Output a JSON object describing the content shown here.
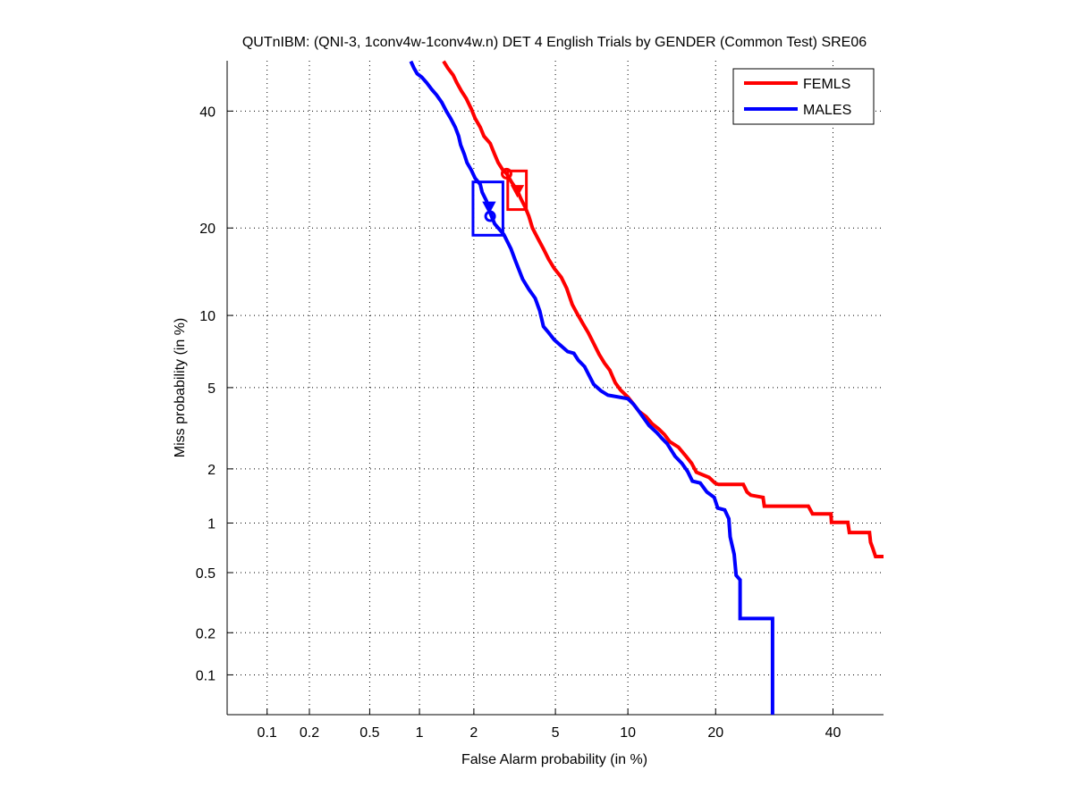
{
  "chart_data": {
    "type": "line",
    "scale": "normal-deviate (DET)",
    "title": "QUTnIBM: (QNI-3, 1conv4w-1conv4w.n) DET 4 English Trials by GENDER (Common Test) SRE06",
    "xlabel": "False Alarm probability (in %)",
    "ylabel": "Miss probability (in %)",
    "xlim": [
      0.05,
      50
    ],
    "ylim": [
      0.05,
      50
    ],
    "grid": true,
    "legend_position": "top-right",
    "x_ticks": [
      {
        "value": 0.1,
        "label": "0.1"
      },
      {
        "value": 0.2,
        "label": "0.2"
      },
      {
        "value": 0.5,
        "label": "0.5"
      },
      {
        "value": 1,
        "label": "1"
      },
      {
        "value": 2,
        "label": "2"
      },
      {
        "value": 5,
        "label": "5"
      },
      {
        "value": 10,
        "label": "10"
      },
      {
        "value": 20,
        "label": "20"
      },
      {
        "value": 40,
        "label": "40"
      }
    ],
    "y_ticks": [
      {
        "value": 0.1,
        "label": "0.1"
      },
      {
        "value": 0.2,
        "label": "0.2"
      },
      {
        "value": 0.5,
        "label": "0.5"
      },
      {
        "value": 1,
        "label": "1"
      },
      {
        "value": 2,
        "label": "2"
      },
      {
        "value": 5,
        "label": "5"
      },
      {
        "value": 10,
        "label": "10"
      },
      {
        "value": 20,
        "label": "20"
      },
      {
        "value": 40,
        "label": "40"
      }
    ],
    "series": [
      {
        "name": "FEMLS",
        "color": "#ff0000",
        "x": [
          1.37,
          1.45,
          1.55,
          1.62,
          1.72,
          1.82,
          1.94,
          2.03,
          2.16,
          2.26,
          2.43,
          2.56,
          2.67,
          2.82,
          2.94,
          3.12,
          3.32,
          3.45,
          3.63,
          3.77,
          3.92,
          4.15,
          4.41,
          4.66,
          4.94,
          5.31,
          5.61,
          5.93,
          6.25,
          6.59,
          6.94,
          7.31,
          7.69,
          8.09,
          8.5,
          8.93,
          9.37,
          10.0,
          10.5,
          11.0,
          11.7,
          12.3,
          13.0,
          13.6,
          14.2,
          15.2,
          16.1,
          16.8,
          17.4,
          19.1,
          19.9,
          20.4,
          24.1,
          24.7,
          25.3,
          27.3,
          27.5,
          35.3,
          36.1,
          39.6,
          39.7,
          42.9,
          43.2,
          47.2,
          47.4,
          47.9,
          48.4,
          50
        ],
        "y": [
          49.9,
          48.5,
          47.1,
          45.6,
          43.9,
          42.5,
          40.4,
          38.6,
          36.9,
          35.2,
          33.9,
          31.9,
          30.4,
          29.1,
          28.5,
          27.0,
          25.7,
          24.4,
          23.0,
          21.7,
          20.0,
          18.6,
          17.2,
          15.9,
          14.8,
          13.8,
          12.6,
          11.0,
          10.1,
          9.29,
          8.56,
          7.74,
          6.99,
          6.41,
          5.97,
          5.26,
          4.88,
          4.53,
          4.2,
          3.89,
          3.66,
          3.39,
          3.19,
          3.0,
          2.76,
          2.59,
          2.33,
          2.14,
          1.92,
          1.8,
          1.68,
          1.65,
          1.65,
          1.5,
          1.44,
          1.4,
          1.25,
          1.25,
          1.13,
          1.13,
          1.01,
          1.01,
          0.88,
          0.88,
          0.77,
          0.7,
          0.63,
          0.63
        ],
        "act_point": {
          "x": 2.94,
          "y": 28.5,
          "marker": "circle"
        },
        "min_dcf_point": {
          "x": 3.32,
          "y": 25.7,
          "marker": "triangle"
        },
        "confidence_box": {
          "x": [
            2.98,
            3.67
          ],
          "y": [
            22.7,
            28.96
          ]
        }
      },
      {
        "name": "MALES",
        "color": "#0000ff",
        "x": [
          0.89,
          0.93,
          0.97,
          1.03,
          1.1,
          1.18,
          1.25,
          1.34,
          1.42,
          1.5,
          1.59,
          1.66,
          1.7,
          1.78,
          1.84,
          1.94,
          2.03,
          2.16,
          2.21,
          2.33,
          2.43,
          2.56,
          2.67,
          2.85,
          3.09,
          3.25,
          3.52,
          3.77,
          4.04,
          4.24,
          4.41,
          4.66,
          4.94,
          5.26,
          5.66,
          6.03,
          6.3,
          6.7,
          7.0,
          7.31,
          7.82,
          8.36,
          10.0,
          10.5,
          11.0,
          11.5,
          12.0,
          12.8,
          13.3,
          13.9,
          14.8,
          15.6,
          16.3,
          16.9,
          17.9,
          18.8,
          19.8,
          20.3,
          21.3,
          21.9,
          22.1,
          22.7,
          23.0,
          23.6,
          23.6,
          28.9,
          28.9
        ],
        "y": [
          49.9,
          48.5,
          47.4,
          46.7,
          45.6,
          44.2,
          43.2,
          41.7,
          40.0,
          38.6,
          36.9,
          35.2,
          33.6,
          31.9,
          30.4,
          29.1,
          27.7,
          26.7,
          25.4,
          24.0,
          22.2,
          20.6,
          20.0,
          19.1,
          17.2,
          15.7,
          13.6,
          12.5,
          11.6,
          10.4,
          9.06,
          8.56,
          8.01,
          7.62,
          7.17,
          7.05,
          6.59,
          6.19,
          5.66,
          5.17,
          4.84,
          4.62,
          4.45,
          4.2,
          3.89,
          3.59,
          3.32,
          3.06,
          2.88,
          2.7,
          2.33,
          2.14,
          1.94,
          1.72,
          1.68,
          1.5,
          1.4,
          1.22,
          1.19,
          1.06,
          0.83,
          0.65,
          0.48,
          0.45,
          0.25,
          0.25,
          0.05
        ],
        "act_point": {
          "x": 2.43,
          "y": 21.7,
          "marker": "circle"
        },
        "min_dcf_point": {
          "x": 2.4,
          "y": 23.1,
          "marker": "triangle"
        },
        "confidence_box": {
          "x": [
            1.98,
            2.82
          ],
          "y": [
            19.0,
            27.1
          ]
        }
      }
    ]
  }
}
